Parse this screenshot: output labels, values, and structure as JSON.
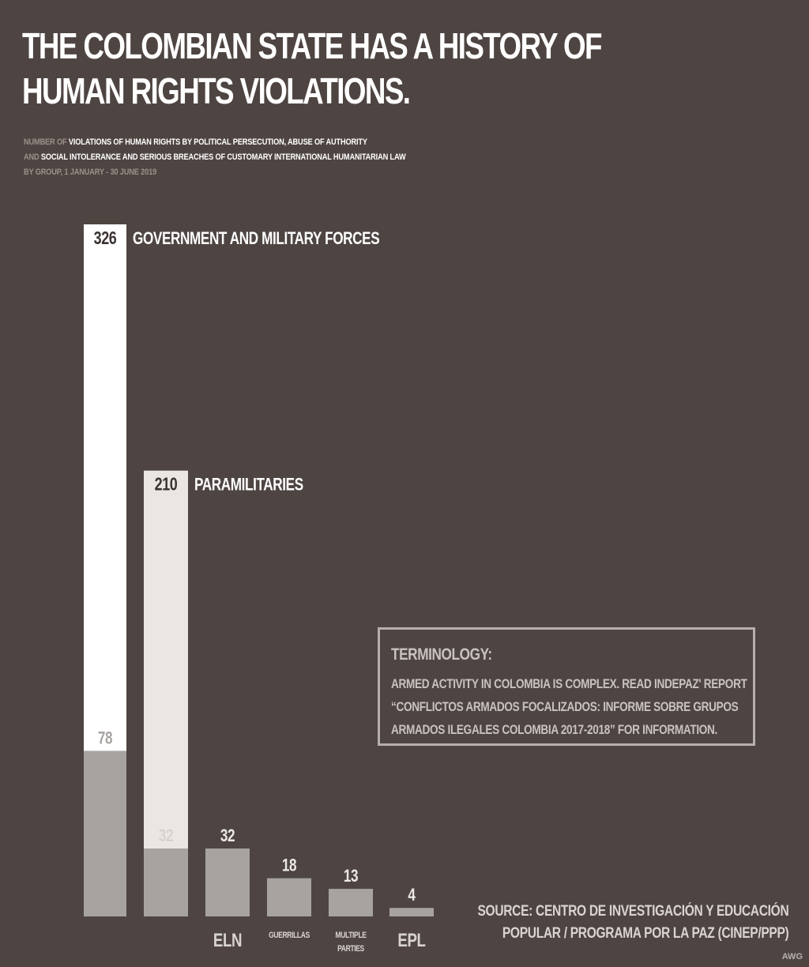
{
  "title_lines": [
    "THE COLOMBIAN STATE HAS A HISTORY OF",
    "HUMAN RIGHTS VIOLATIONS."
  ],
  "subtitle": {
    "line1_prefix": "NUMBER OF ",
    "line1_highlight": "VIOLATIONS OF HUMAN RIGHTS BY POLITICAL PERSECUTION, ABUSE OF AUTHORITY",
    "line2_prefix": "AND ",
    "line2_highlight": "SOCIAL INTOLERANCE AND SERIOUS BREACHES OF CUSTOMARY INTERNATIONAL HUMANITARIAN LAW",
    "line3": "BY GROUP, 1 JANUARY  - 30 JUNE 2019"
  },
  "terminology": {
    "heading": "TERMINOLOGY:",
    "lines": [
      "ARMED ACTIVITY IN COLOMBIA IS COMPLEX. READ INDEPAZ' REPORT",
      "“CONFLICTOS ARMADOS FOCALIZADOS: INFORME SOBRE GRUPOS",
      "ARMADOS ILEGALES  COLOMBIA 2017-2018”  FOR INFORMATION."
    ]
  },
  "source_lines": [
    "SOURCE: CENTRO DE INVESTIGACIÓN Y EDUCACIÓN",
    "POPULAR / PROGRAMA POR LA PAZ (CINEP/PPP)"
  ],
  "credit": "AWG",
  "colors": {
    "background": "#4e4542",
    "bar_total_government": "#ffffff",
    "bar_total_paramilitaries": "#e9e6e4",
    "bar_sub": "#a7a3a1",
    "value_dark": "#3a3331",
    "value_light": "#d6d2cf",
    "value_on_bar": "#ebe8e6"
  },
  "chart_data": {
    "type": "bar",
    "categories": [
      "GOVERNMENT AND MILITARY FORCES",
      "PARAMILITARIES",
      "ELN",
      "GUERRILLAS",
      "MULTIPLE PARTIES",
      "EPL"
    ],
    "series": [
      {
        "values": [
          326,
          210,
          32,
          18,
          13,
          4
        ]
      },
      {
        "values": [
          78,
          32,
          null,
          null,
          null,
          null
        ]
      }
    ],
    "category_labels_beside": [
      "GOVERNMENT AND MILITARY FORCES",
      "PARAMILITARIES"
    ],
    "category_labels_below": [
      "ELN",
      "GUERRILLAS",
      "MULTIPLE PARTIES",
      "EPL"
    ],
    "ylim": [
      0,
      326
    ],
    "grid": false,
    "legend": "none"
  }
}
